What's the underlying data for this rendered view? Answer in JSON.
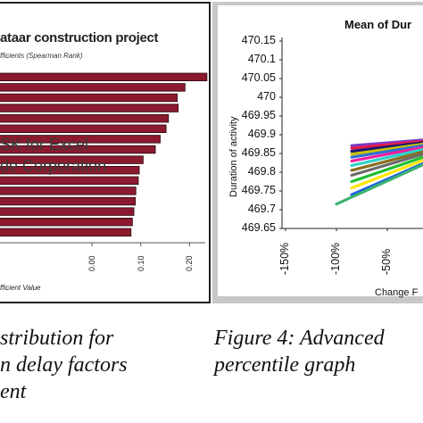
{
  "left_chart": {
    "title": "ataar construction project",
    "subtitle": "fficients  (Spearman  Rank)",
    "watermark_line1": "SK for Excel",
    "watermark_line2": "de Corporation",
    "x_axis_label": "fficient Value",
    "x_ticks": [
      "0.00",
      "0.10",
      "0.20"
    ]
  },
  "right_chart": {
    "title": "Mean of Dur",
    "y_label": "Duration of activity",
    "x_label": "Change F",
    "y_ticks": [
      "470.15",
      "470.1",
      "470.05",
      "470",
      "469.95",
      "469.9",
      "469.85",
      "469.8",
      "469.75",
      "469.7",
      "469.65"
    ],
    "x_ticks": [
      "-150%",
      "-100%",
      "-50%"
    ]
  },
  "captions": {
    "left_line1": "stribution for",
    "left_line2": "n delay factors",
    "left_line3": "ent",
    "right_line1": "Figure 4: Advanced",
    "right_line2": "percentile graph"
  },
  "colors": {
    "bar_fill": "#8b1a2e",
    "bar_edge": "#2a0a10",
    "line_colors": [
      "#7a3cc8",
      "#e6194b",
      "#1a1a6e",
      "#c9c400",
      "#2f6fd1",
      "#f01fa0",
      "#2bd4c8",
      "#8a6d1f",
      "#6b6b6b",
      "#1fbf2f",
      "#ffe600",
      "#1a60e0",
      "#3cb371"
    ]
  },
  "chart_data": [
    {
      "type": "bar",
      "orientation": "horizontal",
      "title": "ataar construction project",
      "subtitle": "fficients  (Spearman  Rank)",
      "xlabel": "fficient Value",
      "xlim": [
        -0.2,
        0.26
      ],
      "x_ticks": [
        0.0,
        0.1,
        0.2
      ],
      "values": [
        0.236,
        0.191,
        0.175,
        0.177,
        0.157,
        0.152,
        0.14,
        0.13,
        0.105,
        0.097,
        0.095,
        0.09,
        0.089,
        0.086,
        0.083,
        0.08
      ]
    },
    {
      "type": "line",
      "title": "Mean of Dur",
      "xlabel": "Change F",
      "ylabel": "Duration of activity",
      "ylim": [
        469.65,
        470.15
      ],
      "y_ticks": [
        470.15,
        470.1,
        470.05,
        470,
        469.95,
        469.9,
        469.85,
        469.8,
        469.75,
        469.7,
        469.65
      ],
      "x_ticks": [
        "-150%",
        "-100%",
        "-50%"
      ],
      "series": [
        {
          "x": [
            -0.85,
            0.5
          ],
          "y": [
            469.871,
            469.9
          ]
        },
        {
          "x": [
            -0.85,
            0.5
          ],
          "y": [
            469.864,
            469.9
          ]
        },
        {
          "x": [
            -0.85,
            0.5
          ],
          "y": [
            469.856,
            469.9
          ]
        },
        {
          "x": [
            -0.85,
            0.5
          ],
          "y": [
            469.848,
            469.9
          ]
        },
        {
          "x": [
            -0.85,
            0.5
          ],
          "y": [
            469.84,
            469.9
          ]
        },
        {
          "x": [
            -0.85,
            0.5
          ],
          "y": [
            469.83,
            469.9
          ]
        },
        {
          "x": [
            -0.85,
            0.5
          ],
          "y": [
            469.818,
            469.9
          ]
        },
        {
          "x": [
            -0.85,
            0.5
          ],
          "y": [
            469.805,
            469.9
          ]
        },
        {
          "x": [
            -0.85,
            0.5
          ],
          "y": [
            469.792,
            469.9
          ]
        },
        {
          "x": [
            -0.85,
            0.5
          ],
          "y": [
            469.775,
            469.9
          ]
        },
        {
          "x": [
            -0.85,
            0.5
          ],
          "y": [
            469.758,
            469.9
          ]
        },
        {
          "x": [
            -0.85,
            0.5
          ],
          "y": [
            469.74,
            469.9
          ]
        },
        {
          "x": [
            -1.0,
            0.5
          ],
          "y": [
            469.715,
            469.9
          ]
        }
      ]
    }
  ]
}
